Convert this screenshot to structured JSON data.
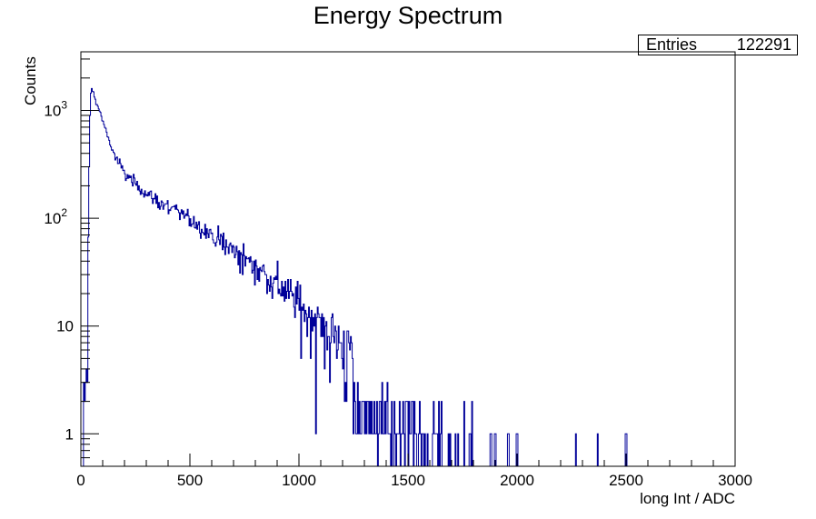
{
  "chart_data": {
    "type": "bar",
    "style": "step-histogram",
    "title": "Energy Spectrum",
    "xlabel": "long Int / ADC",
    "ylabel": "Counts",
    "xlim": [
      0,
      3000
    ],
    "ylim": [
      0.5,
      3500
    ],
    "yscale": "log",
    "grid": false,
    "color": "#000099",
    "stats_box": {
      "label": "Entries",
      "value": "122291",
      "placement": "top-right"
    },
    "x_ticks": [
      "0",
      "500",
      "1000",
      "1500",
      "2000",
      "2500",
      "3000"
    ],
    "y_ticks": [
      {
        "value": 1,
        "label": "1",
        "sup": ""
      },
      {
        "value": 10,
        "label": "10",
        "sup": ""
      },
      {
        "value": 100,
        "label": "10",
        "sup": "2"
      },
      {
        "value": 1000,
        "label": "10",
        "sup": "3"
      }
    ],
    "bin_width": 4,
    "series": [
      {
        "name": "",
        "x": [
          20,
          50,
          100,
          150,
          200,
          300,
          400,
          500,
          600,
          700,
          800,
          900,
          1000,
          1100,
          1200,
          1300,
          1400,
          1500,
          1600,
          1700,
          1800,
          2000,
          2270,
          2370
        ],
        "values": [
          3,
          1600,
          800,
          400,
          260,
          170,
          125,
          100,
          70,
          50,
          36,
          25,
          16,
          10,
          7,
          4,
          2.5,
          2,
          1.5,
          1,
          1,
          1,
          1,
          1
        ]
      }
    ]
  }
}
